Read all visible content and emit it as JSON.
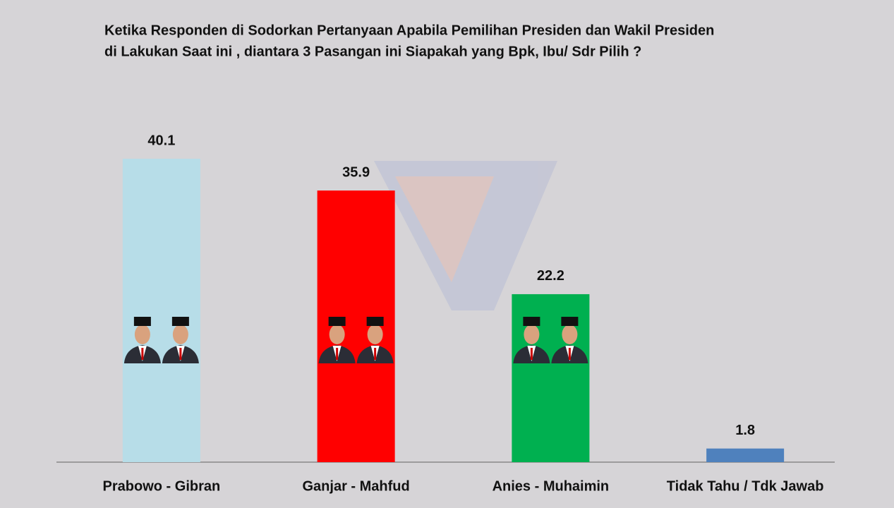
{
  "chart_data": {
    "type": "bar",
    "title": [
      "Ketika Responden di Sodorkan Pertanyaan Apabila Pemilihan Presiden dan Wakil Presiden",
      "di Lakukan Saat ini , diantara  3 Pasangan ini Siapakah yang Bpk, Ibu/ Sdr Pilih ?"
    ],
    "categories": [
      "Prabowo - Gibran",
      "Ganjar - Mahfud",
      "Anies -  Muhaimin",
      "Tidak Tahu / Tdk Jawab"
    ],
    "values": [
      40.1,
      35.9,
      22.2,
      1.8
    ],
    "colors": [
      "#b7dde8",
      "#ff0000",
      "#00b050",
      "#4f81bd"
    ]
  }
}
